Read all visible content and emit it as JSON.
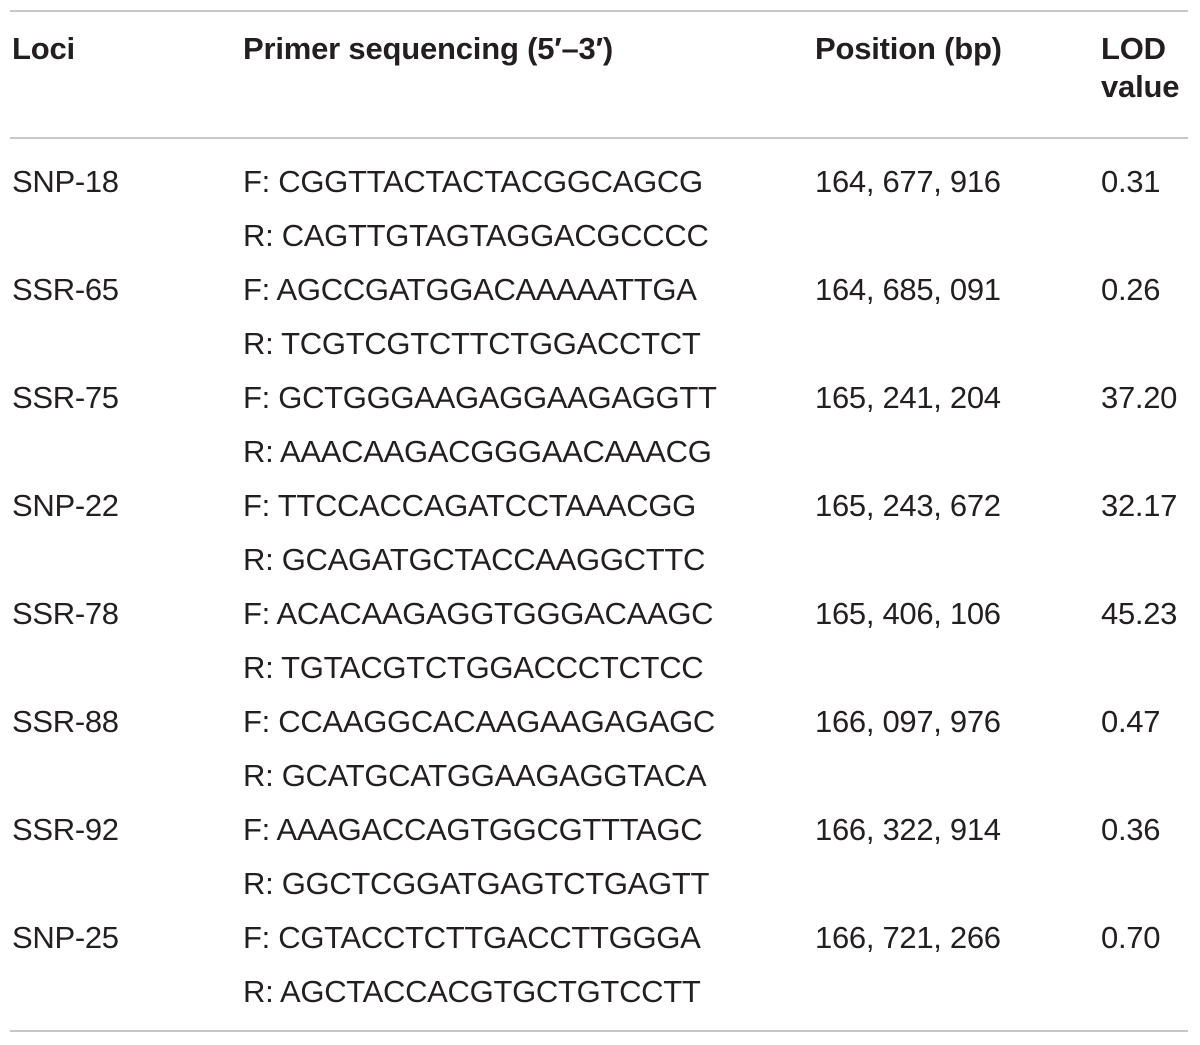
{
  "table": {
    "headers": {
      "loci": "Loci",
      "primer": "Primer sequencing (5′–3′)",
      "position": "Position (bp)",
      "lod_line1": "LOD",
      "lod_line2": "value"
    },
    "rows": [
      {
        "locus": "SNP-18",
        "forward": "F: CGGTTACTACTACGGCAGCG",
        "reverse": "R: CAGTTGTAGTAGGACGCCCC",
        "position": "164, 677, 916",
        "lod": "0.31"
      },
      {
        "locus": "SSR-65",
        "forward": "F: AGCCGATGGACAAAAATTGA",
        "reverse": "R: TCGTCGTCTTCTGGACCTCT",
        "position": "164, 685, 091",
        "lod": "0.26"
      },
      {
        "locus": "SSR-75",
        "forward": "F: GCTGGGAAGAGGAAGAGGTT",
        "reverse": "R: AAACAAGACGGGAACAAACG",
        "position": "165, 241, 204",
        "lod": "37.20"
      },
      {
        "locus": "SNP-22",
        "forward": "F: TTCCACCAGATCCTAAACGG",
        "reverse": "R: GCAGATGCTACCAAGGCTTC",
        "position": "165, 243, 672",
        "lod": "32.17"
      },
      {
        "locus": "SSR-78",
        "forward": "F: ACACAAGAGGTGGGACAAGC",
        "reverse": "R: TGTACGTCTGGACCCTCTCC",
        "position": "165, 406, 106",
        "lod": "45.23"
      },
      {
        "locus": "SSR-88",
        "forward": "F: CCAAGGCACAAGAAGAGAGC",
        "reverse": "R: GCATGCATGGAAGAGGTACA",
        "position": "166, 097, 976",
        "lod": "0.47"
      },
      {
        "locus": "SSR-92",
        "forward": "F: AAAGACCAGTGGCGTTTAGC",
        "reverse": "R: GGCTCGGATGAGTCTGAGTT",
        "position": "166, 322, 914",
        "lod": "0.36"
      },
      {
        "locus": "SNP-25",
        "forward": "F: CGTACCTCTTGACCTTGGGA",
        "reverse": "R: AGCTACCACGTGCTGTCCTT",
        "position": "166, 721, 266",
        "lod": "0.70"
      }
    ]
  }
}
